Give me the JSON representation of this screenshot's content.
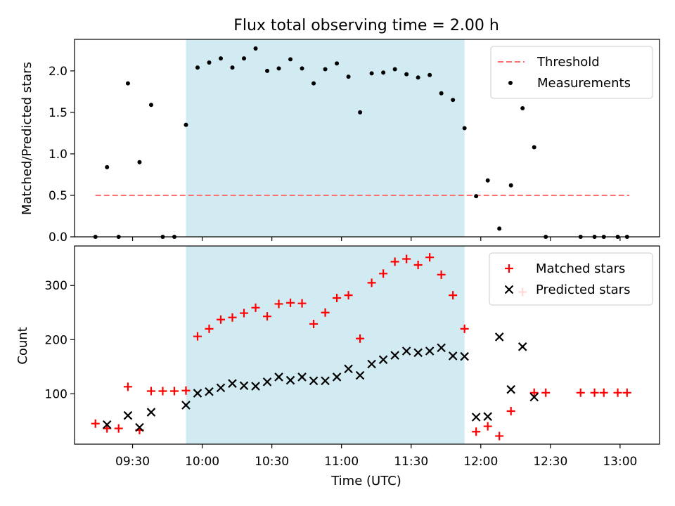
{
  "chart_data": [
    {
      "type": "scatter",
      "title": "Flux total observing time = 2.00 h",
      "ylabel": "Matched/Predicted stars",
      "xlabel": "",
      "ylim": [
        0,
        2.38
      ],
      "yticks": [
        "0.0",
        "0.5",
        "1.0",
        "1.5",
        "2.0"
      ],
      "legend_position": "top-right",
      "shaded_interval": {
        "start": "09:53",
        "end": "11:53",
        "color": "#add8e6"
      },
      "threshold": {
        "name": "Threshold",
        "value": 0.5,
        "x_start": "09:14",
        "x_end": "13:04",
        "color": "#ff7070",
        "style": "dashed"
      },
      "series": [
        {
          "name": "Measurements",
          "color": "#000000",
          "marker": "dot",
          "points": [
            [
              "09:14",
              0.0
            ],
            [
              "09:19",
              0.84
            ],
            [
              "09:24",
              0.0
            ],
            [
              "09:28",
              1.85
            ],
            [
              "09:33",
              0.9
            ],
            [
              "09:38",
              1.59
            ],
            [
              "09:43",
              0.0
            ],
            [
              "09:48",
              0.0
            ],
            [
              "09:53",
              1.35
            ],
            [
              "09:58",
              2.04
            ],
            [
              "10:03",
              2.1
            ],
            [
              "10:08",
              2.15
            ],
            [
              "10:13",
              2.04
            ],
            [
              "10:18",
              2.15
            ],
            [
              "10:23",
              2.27
            ],
            [
              "10:28",
              2.0
            ],
            [
              "10:33",
              2.03
            ],
            [
              "10:38",
              2.14
            ],
            [
              "10:43",
              2.03
            ],
            [
              "10:48",
              1.85
            ],
            [
              "10:53",
              2.02
            ],
            [
              "10:58",
              2.09
            ],
            [
              "11:03",
              1.93
            ],
            [
              "11:08",
              1.5
            ],
            [
              "11:13",
              1.97
            ],
            [
              "11:18",
              1.98
            ],
            [
              "11:23",
              2.02
            ],
            [
              "11:28",
              1.96
            ],
            [
              "11:33",
              1.92
            ],
            [
              "11:38",
              1.95
            ],
            [
              "11:43",
              1.73
            ],
            [
              "11:48",
              1.65
            ],
            [
              "11:53",
              1.31
            ],
            [
              "11:58",
              0.49
            ],
            [
              "12:03",
              0.68
            ],
            [
              "12:08",
              0.1
            ],
            [
              "12:13",
              0.62
            ],
            [
              "12:18",
              1.55
            ],
            [
              "12:23",
              1.08
            ],
            [
              "12:28",
              0.0
            ],
            [
              "12:43",
              0.0
            ],
            [
              "12:49",
              0.0
            ],
            [
              "12:53",
              0.0
            ],
            [
              "12:59",
              0.0
            ],
            [
              "13:03",
              0.0
            ]
          ]
        }
      ]
    },
    {
      "type": "scatter",
      "title": "",
      "ylabel": "Count",
      "xlabel": "Time (UTC)",
      "ylim": [
        7,
        373
      ],
      "yticks": [
        "100",
        "200",
        "300"
      ],
      "xticks": [
        "09:30",
        "10:00",
        "10:30",
        "11:00",
        "11:30",
        "12:00",
        "12:30",
        "13:00"
      ],
      "xlim": [
        "09:05",
        "13:17"
      ],
      "legend_position": "top-right",
      "shaded_interval": {
        "start": "09:53",
        "end": "11:53",
        "color": "#add8e6"
      },
      "series": [
        {
          "name": "Matched stars",
          "color": "#ff0000",
          "marker": "plus",
          "points": [
            [
              "09:14",
              45
            ],
            [
              "09:19",
              36
            ],
            [
              "09:24",
              36
            ],
            [
              "09:28",
              113
            ],
            [
              "09:33",
              33
            ],
            [
              "09:38",
              105
            ],
            [
              "09:43",
              105
            ],
            [
              "09:48",
              105
            ],
            [
              "09:53",
              106
            ],
            [
              "09:58",
              206
            ],
            [
              "10:03",
              220
            ],
            [
              "10:08",
              237
            ],
            [
              "10:13",
              241
            ],
            [
              "10:18",
              249
            ],
            [
              "10:23",
              259
            ],
            [
              "10:28",
              243
            ],
            [
              "10:33",
              266
            ],
            [
              "10:38",
              268
            ],
            [
              "10:43",
              267
            ],
            [
              "10:48",
              229
            ],
            [
              "10:53",
              250
            ],
            [
              "10:58",
              277
            ],
            [
              "11:03",
              282
            ],
            [
              "11:08",
              202
            ],
            [
              "11:13",
              305
            ],
            [
              "11:18",
              322
            ],
            [
              "11:23",
              344
            ],
            [
              "11:28",
              349
            ],
            [
              "11:33",
              338
            ],
            [
              "11:38",
              352
            ],
            [
              "11:43",
              320
            ],
            [
              "11:48",
              282
            ],
            [
              "11:53",
              220
            ],
            [
              "11:58",
              30
            ],
            [
              "12:03",
              40
            ],
            [
              "12:08",
              22
            ],
            [
              "12:13",
              68
            ],
            [
              "12:18",
              288
            ],
            [
              "12:23",
              102
            ],
            [
              "12:28",
              102
            ],
            [
              "12:43",
              102
            ],
            [
              "12:49",
              102
            ],
            [
              "12:53",
              102
            ],
            [
              "12:59",
              102
            ],
            [
              "13:03",
              102
            ]
          ]
        },
        {
          "name": "Predicted stars",
          "color": "#000000",
          "marker": "x",
          "points": [
            [
              "09:19",
              43
            ],
            [
              "09:28",
              60
            ],
            [
              "09:33",
              38
            ],
            [
              "09:38",
              66
            ],
            [
              "09:53",
              79
            ],
            [
              "09:58",
              101
            ],
            [
              "10:03",
              104
            ],
            [
              "10:08",
              111
            ],
            [
              "10:13",
              119
            ],
            [
              "10:18",
              115
            ],
            [
              "10:23",
              114
            ],
            [
              "10:28",
              122
            ],
            [
              "10:33",
              131
            ],
            [
              "10:38",
              125
            ],
            [
              "10:43",
              131
            ],
            [
              "10:48",
              124
            ],
            [
              "10:53",
              124
            ],
            [
              "10:58",
              131
            ],
            [
              "11:03",
              146
            ],
            [
              "11:08",
              134
            ],
            [
              "11:13",
              155
            ],
            [
              "11:18",
              163
            ],
            [
              "11:23",
              171
            ],
            [
              "11:28",
              179
            ],
            [
              "11:33",
              176
            ],
            [
              "11:38",
              179
            ],
            [
              "11:43",
              185
            ],
            [
              "11:48",
              170
            ],
            [
              "11:53",
              169
            ],
            [
              "11:58",
              57
            ],
            [
              "12:03",
              58
            ],
            [
              "12:08",
              205
            ],
            [
              "12:13",
              108
            ],
            [
              "12:18",
              187
            ],
            [
              "12:23",
              94
            ]
          ]
        }
      ]
    }
  ]
}
